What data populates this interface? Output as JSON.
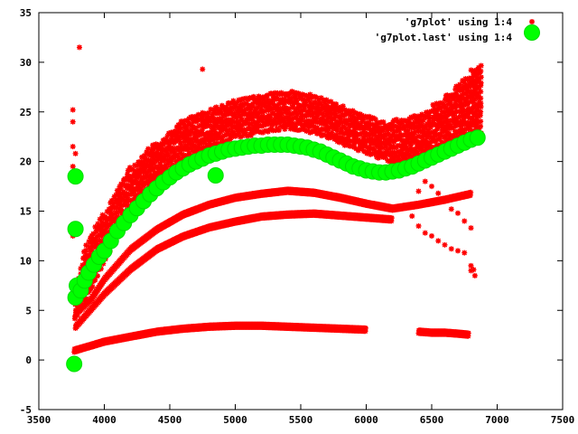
{
  "chart_data": {
    "type": "scatter",
    "title": "",
    "xlabel": "",
    "ylabel": "",
    "xlim": [
      3500,
      7500
    ],
    "ylim": [
      -5,
      35
    ],
    "xticks": [
      3500,
      4000,
      4500,
      5000,
      5500,
      6000,
      6500,
      7000,
      7500
    ],
    "yticks": [
      -5,
      0,
      5,
      10,
      15,
      20,
      25,
      30,
      35
    ],
    "grid": false,
    "legend_position": "top-right",
    "series": [
      {
        "name": "'g7plot' using 1:4",
        "color": "#ff0000",
        "marker": "star",
        "bands": [
          {
            "x": [
              3780,
              3850,
              4000,
              4200,
              4400,
              4600,
              4800,
              5000,
              5200,
              5400,
              5600,
              5800,
              6000,
              6200,
              6400,
              6600,
              6800,
              6880
            ],
            "lower": [
              4,
              6,
              10,
              15,
              18,
              20.5,
              21.5,
              22.5,
              23,
              23.5,
              23,
              22,
              21,
              20,
              20.5,
              21.5,
              22.5,
              23
            ],
            "upper": [
              7,
              11,
              15,
              19.5,
              22,
              24,
              25,
              26,
              26.8,
              27.2,
              26.8,
              26,
              24.8,
              24,
              24.5,
              26.5,
              29,
              30
            ]
          }
        ],
        "curves": [
          [
            [
              3780,
              3.2
            ],
            [
              3900,
              5
            ],
            [
              4000,
              6.5
            ],
            [
              4200,
              9
            ],
            [
              4400,
              11
            ],
            [
              4600,
              12.3
            ],
            [
              4800,
              13.2
            ],
            [
              5000,
              13.8
            ],
            [
              5200,
              14.3
            ],
            [
              5400,
              14.5
            ],
            [
              5600,
              14.6
            ],
            [
              5800,
              14.4
            ],
            [
              6000,
              14.2
            ],
            [
              6200,
              14
            ]
          ],
          [
            [
              3780,
              4.5
            ],
            [
              3900,
              6
            ],
            [
              4000,
              8
            ],
            [
              4200,
              11
            ],
            [
              4400,
              13
            ],
            [
              4600,
              14.5
            ],
            [
              4800,
              15.5
            ],
            [
              5000,
              16.2
            ],
            [
              5200,
              16.6
            ],
            [
              5400,
              16.9
            ],
            [
              5600,
              16.7
            ],
            [
              5800,
              16.2
            ],
            [
              6000,
              15.6
            ],
            [
              6200,
              15.1
            ],
            [
              6400,
              15.5
            ],
            [
              6600,
              16
            ],
            [
              6800,
              16.6
            ]
          ],
          [
            [
              3770,
              0.8
            ],
            [
              3900,
              1.3
            ],
            [
              4000,
              1.7
            ],
            [
              4200,
              2.2
            ],
            [
              4400,
              2.7
            ],
            [
              4600,
              3
            ],
            [
              4800,
              3.2
            ],
            [
              5000,
              3.3
            ],
            [
              5200,
              3.3
            ],
            [
              5400,
              3.2
            ],
            [
              5600,
              3.1
            ],
            [
              5800,
              3
            ],
            [
              6000,
              2.9
            ]
          ],
          [
            [
              6400,
              2.7
            ],
            [
              6500,
              2.6
            ],
            [
              6600,
              2.6
            ],
            [
              6700,
              2.5
            ],
            [
              6780,
              2.4
            ]
          ]
        ],
        "outliers": [
          [
            3810,
            31.5
          ],
          [
            4750,
            29.3
          ],
          [
            3760,
            25.2
          ],
          [
            3760,
            24
          ],
          [
            3760,
            21.5
          ],
          [
            3780,
            20.8
          ],
          [
            3760,
            19.5
          ],
          [
            3800,
            13.5
          ],
          [
            3760,
            12.5
          ],
          [
            6350,
            14.5
          ],
          [
            6400,
            13.5
          ],
          [
            6450,
            12.8
          ],
          [
            6500,
            12.5
          ],
          [
            6550,
            12
          ],
          [
            6600,
            11.6
          ],
          [
            6650,
            11.2
          ],
          [
            6700,
            11
          ],
          [
            6750,
            10.8
          ],
          [
            6800,
            9.5
          ],
          [
            6820,
            9.1
          ],
          [
            6830,
            8.5
          ],
          [
            6800,
            9
          ],
          [
            4750,
            24.5
          ],
          [
            4750,
            21
          ],
          [
            6400,
            17
          ],
          [
            6450,
            18
          ],
          [
            6500,
            17.5
          ],
          [
            6550,
            16.8
          ],
          [
            6600,
            16
          ],
          [
            6650,
            15.2
          ],
          [
            6700,
            14.8
          ],
          [
            6750,
            14
          ],
          [
            6800,
            13.3
          ]
        ]
      },
      {
        "name": "'g7plot.last' using 1:4",
        "color": "#00ff00",
        "marker": "circle",
        "points": [
          [
            3780,
            6.3
          ],
          [
            3790,
            7.5
          ],
          [
            3820,
            7
          ],
          [
            3850,
            8
          ],
          [
            3880,
            8.8
          ],
          [
            3920,
            9.6
          ],
          [
            3960,
            10.4
          ],
          [
            4000,
            11
          ],
          [
            4050,
            12
          ],
          [
            4100,
            13
          ],
          [
            4150,
            13.8
          ],
          [
            4200,
            14.6
          ],
          [
            4250,
            15.3
          ],
          [
            4300,
            16
          ],
          [
            4350,
            16.7
          ],
          [
            4400,
            17.3
          ],
          [
            4450,
            17.9
          ],
          [
            4500,
            18.4
          ],
          [
            4550,
            18.9
          ],
          [
            4600,
            19.3
          ],
          [
            4650,
            19.7
          ],
          [
            4700,
            20
          ],
          [
            4750,
            20.3
          ],
          [
            4800,
            20.6
          ],
          [
            4850,
            20.8
          ],
          [
            4900,
            21
          ],
          [
            4950,
            21.2
          ],
          [
            5000,
            21.3
          ],
          [
            5050,
            21.4
          ],
          [
            5100,
            21.5
          ],
          [
            5150,
            21.6
          ],
          [
            5200,
            21.6
          ],
          [
            5250,
            21.7
          ],
          [
            5300,
            21.7
          ],
          [
            5350,
            21.7
          ],
          [
            5400,
            21.7
          ],
          [
            5450,
            21.6
          ],
          [
            5500,
            21.5
          ],
          [
            5550,
            21.4
          ],
          [
            5600,
            21.2
          ],
          [
            5650,
            21
          ],
          [
            5700,
            20.7
          ],
          [
            5750,
            20.4
          ],
          [
            5800,
            20.1
          ],
          [
            5850,
            19.8
          ],
          [
            5900,
            19.5
          ],
          [
            5950,
            19.3
          ],
          [
            6000,
            19.1
          ],
          [
            6050,
            19
          ],
          [
            6100,
            18.9
          ],
          [
            6150,
            18.9
          ],
          [
            6200,
            19
          ],
          [
            6250,
            19.1
          ],
          [
            6300,
            19.3
          ],
          [
            6350,
            19.5
          ],
          [
            6400,
            19.8
          ],
          [
            6450,
            20.1
          ],
          [
            6500,
            20.4
          ],
          [
            6550,
            20.7
          ],
          [
            6600,
            21
          ],
          [
            6650,
            21.3
          ],
          [
            6700,
            21.6
          ],
          [
            6750,
            21.9
          ],
          [
            6800,
            22.2
          ],
          [
            6850,
            22.4
          ],
          [
            3780,
            18.5
          ],
          [
            3780,
            13.2
          ],
          [
            3770,
            -0.4
          ],
          [
            4850,
            18.6
          ]
        ]
      }
    ]
  }
}
